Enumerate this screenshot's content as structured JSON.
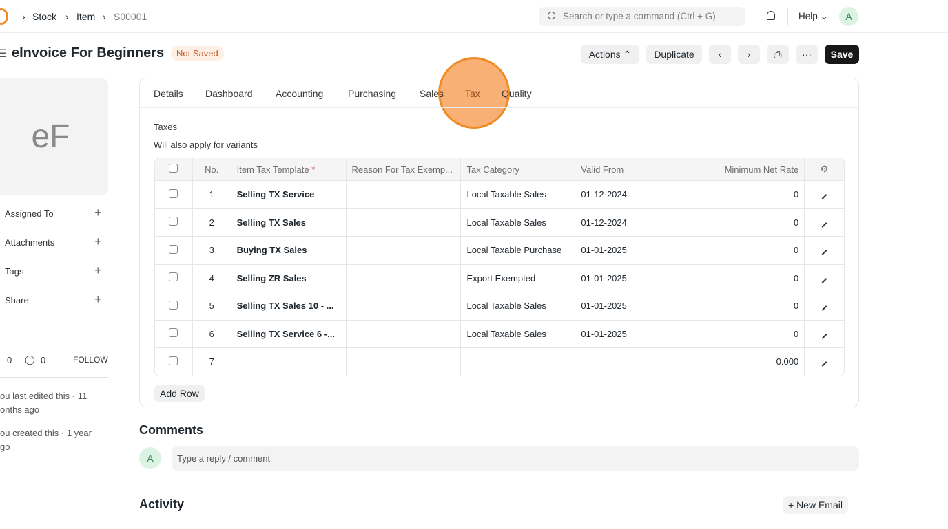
{
  "breadcrumb": [
    "Stock",
    "Item",
    "S00001"
  ],
  "search": {
    "placeholder": "Search or type a command (Ctrl + G)"
  },
  "help": "Help",
  "user_initial": "A",
  "title": "eInvoice For Beginners",
  "status": "Not Saved",
  "actions": {
    "actions": "Actions",
    "duplicate": "Duplicate",
    "save": "Save"
  },
  "image_initials": "eF",
  "sidebar": {
    "items": [
      {
        "label": "Assigned To"
      },
      {
        "label": "Attachments"
      },
      {
        "label": "Tags"
      },
      {
        "label": "Share"
      }
    ],
    "likes": "0",
    "comments": "0",
    "follow": "FOLLOW",
    "edited": "ou last edited this · 11 onths ago",
    "created": "ou created this · 1 year go"
  },
  "tabs": [
    "Details",
    "Dashboard",
    "Accounting",
    "Purchasing",
    "Sales",
    "Tax",
    "Quality"
  ],
  "active_tab": "Tax",
  "section": {
    "label": "Taxes",
    "note": "Will also apply for variants"
  },
  "table": {
    "headers": [
      "No.",
      "Item Tax Template",
      "Reason For Tax Exemp...",
      "Tax Category",
      "Valid From",
      "Minimum Net Rate"
    ],
    "rows": [
      [
        "1",
        "Selling TX Service",
        "",
        "Local Taxable Sales",
        "01-12-2024",
        "0"
      ],
      [
        "2",
        "Selling TX Sales",
        "",
        "Local Taxable Sales",
        "01-12-2024",
        "0"
      ],
      [
        "3",
        "Buying TX Sales",
        "",
        "Local Taxable Purchase",
        "01-01-2025",
        "0"
      ],
      [
        "4",
        "Selling ZR Sales",
        "",
        "Export Exempted",
        "01-01-2025",
        "0"
      ],
      [
        "5",
        "Selling TX Sales 10 - ...",
        "",
        "Local Taxable Sales",
        "01-01-2025",
        "0"
      ],
      [
        "6",
        "Selling TX Service 6 -...",
        "",
        "Local Taxable Sales",
        "01-01-2025",
        "0"
      ],
      [
        "7",
        "",
        "",
        "",
        "",
        "0.000"
      ]
    ]
  },
  "add_row": "Add Row",
  "comments": {
    "title": "Comments",
    "placeholder": "Type a reply / comment"
  },
  "activity": {
    "title": "Activity",
    "new_email": "+ New Email"
  },
  "colors": {
    "accent": "#f08a24",
    "badge": "#c0592a"
  }
}
